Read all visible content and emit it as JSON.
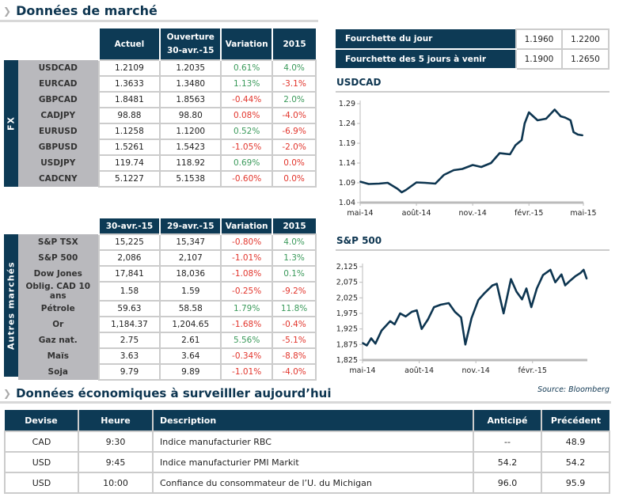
{
  "market_title": "Données de marché",
  "fx": {
    "side_label": "FX",
    "headers": [
      "Actuel",
      "Ouverture",
      "30-avr.-15",
      "Variation",
      "2015"
    ],
    "rows": [
      {
        "name": "USDCAD",
        "actuel": "1.2109",
        "ouverture": "1.2035",
        "variation": "0.61%",
        "ytd": "4.0%",
        "var_dir": "pos",
        "ytd_dir": "pos"
      },
      {
        "name": "EURCAD",
        "actuel": "1.3633",
        "ouverture": "1.3480",
        "variation": "1.13%",
        "ytd": "-3.1%",
        "var_dir": "pos",
        "ytd_dir": "neg"
      },
      {
        "name": "GBPCAD",
        "actuel": "1.8481",
        "ouverture": "1.8563",
        "variation": "-0.44%",
        "ytd": "2.0%",
        "var_dir": "neg",
        "ytd_dir": "pos"
      },
      {
        "name": "CADJPY",
        "actuel": "98.88",
        "ouverture": "98.80",
        "variation": "0.08%",
        "ytd": "-4.0%",
        "var_dir": "neg",
        "ytd_dir": "neg"
      },
      {
        "name": "EURUSD",
        "actuel": "1.1258",
        "ouverture": "1.1200",
        "variation": "0.52%",
        "ytd": "-6.9%",
        "var_dir": "pos",
        "ytd_dir": "neg"
      },
      {
        "name": "GBPUSD",
        "actuel": "1.5261",
        "ouverture": "1.5423",
        "variation": "-1.05%",
        "ytd": "-2.0%",
        "var_dir": "neg",
        "ytd_dir": "neg"
      },
      {
        "name": "USDJPY",
        "actuel": "119.74",
        "ouverture": "118.92",
        "variation": "0.69%",
        "ytd": "0.0%",
        "var_dir": "pos",
        "ytd_dir": "neg"
      },
      {
        "name": "CADCNY",
        "actuel": "5.1227",
        "ouverture": "5.1538",
        "variation": "-0.60%",
        "ytd": "0.0%",
        "var_dir": "neg",
        "ytd_dir": "neg"
      }
    ]
  },
  "other": {
    "side_label": "Autres marchés",
    "headers": [
      "30-avr.-15",
      "29-avr.-15",
      "Variation",
      "2015"
    ],
    "rows": [
      {
        "name": "S&P TSX",
        "c1": "15,225",
        "c2": "15,347",
        "variation": "-0.80%",
        "ytd": "4.0%",
        "var_dir": "neg",
        "ytd_dir": "pos"
      },
      {
        "name": "S&P 500",
        "c1": "2,086",
        "c2": "2,107",
        "variation": "-1.01%",
        "ytd": "1.3%",
        "var_dir": "neg",
        "ytd_dir": "pos"
      },
      {
        "name": "Dow Jones",
        "c1": "17,841",
        "c2": "18,036",
        "variation": "-1.08%",
        "ytd": "0.1%",
        "var_dir": "neg",
        "ytd_dir": "pos"
      },
      {
        "name": "Oblig. CAD 10 ans",
        "c1": "1.58",
        "c2": "1.59",
        "variation": "-0.25%",
        "ytd": "-9.2%",
        "var_dir": "neg",
        "ytd_dir": "neg"
      },
      {
        "name": "Pétrole",
        "c1": "59.63",
        "c2": "58.58",
        "variation": "1.79%",
        "ytd": "11.8%",
        "var_dir": "pos",
        "ytd_dir": "pos"
      },
      {
        "name": "Or",
        "c1": "1,184.37",
        "c2": "1,204.65",
        "variation": "-1.68%",
        "ytd": "-0.4%",
        "var_dir": "neg",
        "ytd_dir": "neg"
      },
      {
        "name": "Gaz nat.",
        "c1": "2.75",
        "c2": "2.61",
        "variation": "5.56%",
        "ytd": "-5.1%",
        "var_dir": "pos",
        "ytd_dir": "neg"
      },
      {
        "name": "Maïs",
        "c1": "3.63",
        "c2": "3.64",
        "variation": "-0.34%",
        "ytd": "-8.8%",
        "var_dir": "neg",
        "ytd_dir": "neg"
      },
      {
        "name": "Soja",
        "c1": "9.79",
        "c2": "9.89",
        "variation": "-1.01%",
        "ytd": "-4.0%",
        "var_dir": "neg",
        "ytd_dir": "neg"
      }
    ]
  },
  "ranges": [
    {
      "label": "Fourchette du jour",
      "low": "1.1960",
      "high": "1.2200"
    },
    {
      "label": "Fourchette des 5 jours à venir",
      "low": "1.1900",
      "high": "1.2650"
    }
  ],
  "colors": {
    "navy": "#0d3a55",
    "positive": "#3b9a5b",
    "negative": "#e2352c",
    "label_bg": "#b9b9bd"
  },
  "chart_data": [
    {
      "type": "line",
      "title": "USDCAD",
      "ylim": [
        1.04,
        1.29
      ],
      "yticks": [
        "1.29",
        "1.24",
        "1.19",
        "1.14",
        "1.09",
        "1.04"
      ],
      "xticks": [
        {
          "label": "mai-14",
          "date": "2014-05-01"
        },
        {
          "label": "août-14",
          "date": "2014-08-01"
        },
        {
          "label": "nov.-14",
          "date": "2014-11-01"
        },
        {
          "label": "févr.-15",
          "date": "2015-02-01"
        },
        {
          "label": "mai-15",
          "date": "2015-05-01"
        }
      ],
      "xlim": [
        "2014-05-01",
        "2015-05-01"
      ],
      "x": [
        "2014-05-01",
        "2014-05-15",
        "2014-06-01",
        "2014-06-15",
        "2014-07-01",
        "2014-07-08",
        "2014-07-15",
        "2014-08-01",
        "2014-08-15",
        "2014-09-01",
        "2014-09-15",
        "2014-10-01",
        "2014-10-15",
        "2014-11-01",
        "2014-11-15",
        "2014-12-01",
        "2014-12-15",
        "2015-01-01",
        "2015-01-10",
        "2015-01-20",
        "2015-01-25",
        "2015-02-01",
        "2015-02-15",
        "2015-03-01",
        "2015-03-15",
        "2015-03-25",
        "2015-04-01",
        "2015-04-10",
        "2015-04-15",
        "2015-04-22",
        "2015-04-30"
      ],
      "y": [
        1.093,
        1.087,
        1.088,
        1.09,
        1.075,
        1.066,
        1.072,
        1.091,
        1.09,
        1.088,
        1.11,
        1.122,
        1.125,
        1.135,
        1.13,
        1.14,
        1.165,
        1.162,
        1.185,
        1.198,
        1.24,
        1.268,
        1.248,
        1.252,
        1.275,
        1.258,
        1.255,
        1.248,
        1.218,
        1.212,
        1.21
      ]
    },
    {
      "type": "line",
      "title": "S&P 500",
      "ylim": [
        1825,
        2125
      ],
      "yticks": [
        "2,125",
        "2,075",
        "2,025",
        "1,975",
        "1,925",
        "1,875",
        "1,825"
      ],
      "xticks": [
        {
          "label": "mai-14",
          "date": "2014-05-01"
        },
        {
          "label": "août-14",
          "date": "2014-08-01"
        },
        {
          "label": "nov.-14",
          "date": "2014-11-01"
        },
        {
          "label": "févr.-15",
          "date": "2015-02-01"
        }
      ],
      "xlim": [
        "2014-05-01",
        "2015-05-01"
      ],
      "x": [
        "2014-05-01",
        "2014-05-08",
        "2014-05-15",
        "2014-05-22",
        "2014-06-01",
        "2014-06-15",
        "2014-06-22",
        "2014-07-01",
        "2014-07-10",
        "2014-07-20",
        "2014-07-28",
        "2014-08-05",
        "2014-08-15",
        "2014-08-25",
        "2014-09-05",
        "2014-09-18",
        "2014-09-28",
        "2014-10-08",
        "2014-10-15",
        "2014-10-25",
        "2014-11-05",
        "2014-11-15",
        "2014-11-28",
        "2014-12-05",
        "2014-12-16",
        "2014-12-28",
        "2015-01-06",
        "2015-01-15",
        "2015-01-22",
        "2015-01-30",
        "2015-02-08",
        "2015-02-18",
        "2015-03-02",
        "2015-03-10",
        "2015-03-20",
        "2015-03-26",
        "2015-04-03",
        "2015-04-12",
        "2015-04-20",
        "2015-04-25",
        "2015-04-30"
      ],
      "y": [
        1880,
        1872,
        1895,
        1878,
        1920,
        1950,
        1940,
        1975,
        1965,
        1980,
        1985,
        1925,
        1955,
        1995,
        2003,
        2008,
        1980,
        1962,
        1875,
        1960,
        2018,
        2040,
        2065,
        2070,
        1975,
        2085,
        2045,
        2020,
        2055,
        1995,
        2055,
        2098,
        2115,
        2075,
        2100,
        2065,
        2080,
        2095,
        2105,
        2115,
        2086
      ]
    }
  ],
  "source": "Source: Bloomberg",
  "eco": {
    "title": "Données économiques à surveilller aujourd’hui",
    "headers": [
      "Devise",
      "Heure",
      "Description",
      "Anticipé",
      "Précédent"
    ],
    "rows": [
      {
        "devise": "CAD",
        "heure": "9:30",
        "description": "Indice manufacturier RBC",
        "anticipe": "--",
        "precedent": "48.9"
      },
      {
        "devise": "USD",
        "heure": "9:45",
        "description": "Indice manufacturier PMI Markit",
        "anticipe": "54.2",
        "precedent": "54.2"
      },
      {
        "devise": "USD",
        "heure": "10:00",
        "description": "Confiance du consommateur de l’U. du Michigan",
        "anticipe": "96.0",
        "precedent": "95.9"
      }
    ]
  }
}
